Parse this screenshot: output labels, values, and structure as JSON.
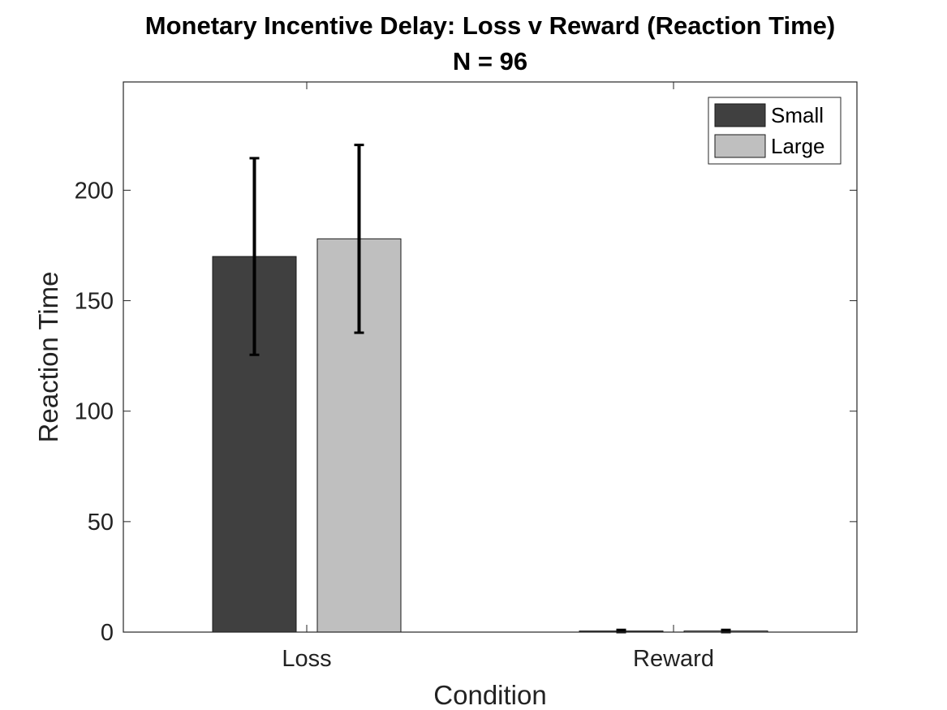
{
  "chart_data": {
    "type": "bar",
    "title": "Monetary Incentive Delay: Loss v Reward (Reaction Time)",
    "subtitle": "N = 96",
    "xlabel": "Condition",
    "ylabel": "Reaction Time",
    "categories": [
      "Loss",
      "Reward"
    ],
    "series": [
      {
        "name": "Small",
        "color": "#404040",
        "values": [
          170,
          0.5
        ],
        "error": [
          44.5,
          0.5
        ]
      },
      {
        "name": "Large",
        "color": "#bfbfbf",
        "values": [
          178,
          0.5
        ],
        "error": [
          42.5,
          0.5
        ]
      }
    ],
    "ylim": [
      0,
      249
    ],
    "yticks": [
      0,
      50,
      100,
      150,
      200
    ],
    "grid": false,
    "legend_position": "top-right"
  }
}
